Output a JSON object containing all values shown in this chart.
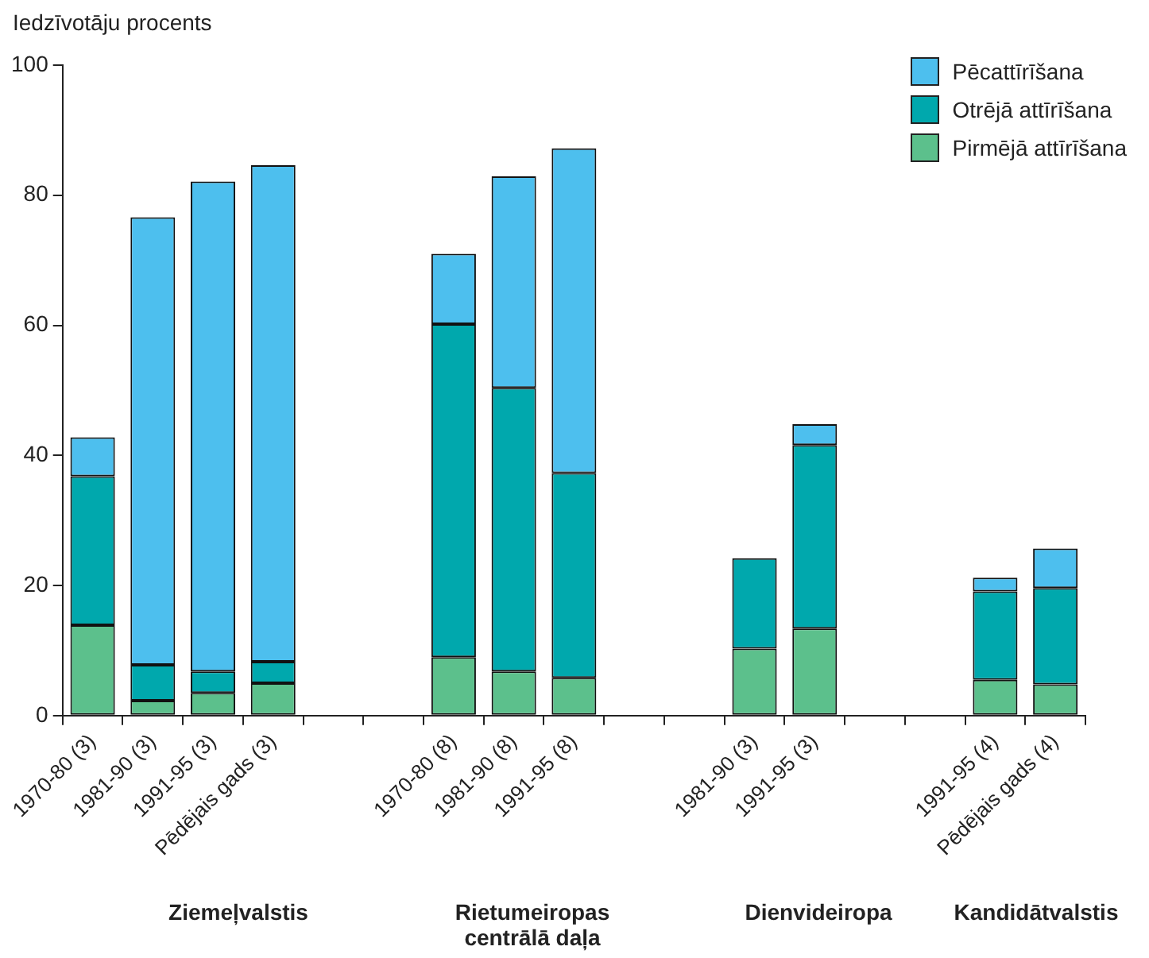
{
  "chart_data": {
    "type": "bar",
    "stacked": true,
    "ylabel": "Iedzīvotāju procents",
    "ylim": [
      0,
      100
    ],
    "yticks": [
      0,
      20,
      40,
      60,
      80,
      100
    ],
    "grid": false,
    "legend": "top right",
    "categories": [
      "1970-80 (3)",
      "1981-90 (3)",
      "1991-95 (3)",
      "Pēdējais gads (3)",
      null,
      null,
      "1970-80 (8)",
      "1981-90 (8)",
      "1991-95 (8)",
      null,
      null,
      "1981-90 (3)",
      "1991-95 (3)",
      null,
      null,
      "1991-95 (4)",
      "Pēdējais gads (4)"
    ],
    "series": [
      {
        "name": "Pirmējā attīrīšana",
        "color": "#5cc08c",
        "values": [
          13.9,
          2.3,
          3.5,
          5,
          null,
          null,
          9,
          6.8,
          5.8,
          null,
          null,
          10.3,
          13.4,
          null,
          null,
          5.5,
          4.8
        ]
      },
      {
        "name": "Otrējā attīrīšana",
        "color": "#00a8ad",
        "values": [
          22.9,
          5.5,
          3.3,
          3.3,
          null,
          null,
          51.2,
          43.6,
          31.5,
          null,
          null,
          13.9,
          28.2,
          null,
          null,
          13.6,
          14.8
        ]
      },
      {
        "name": "Pēcattīrīšana",
        "color": "#4dbfee",
        "values": [
          6,
          68.8,
          75.3,
          76.3,
          null,
          null,
          10.8,
          32.5,
          49.9,
          null,
          null,
          0,
          3.2,
          null,
          null,
          2.1,
          6.1
        ]
      }
    ],
    "annotations": [
      "Ziemeļvalstis",
      "Rietumeiropas centrālā daļa",
      "Dienvideiropa",
      "Kandidātvalstis"
    ]
  }
}
